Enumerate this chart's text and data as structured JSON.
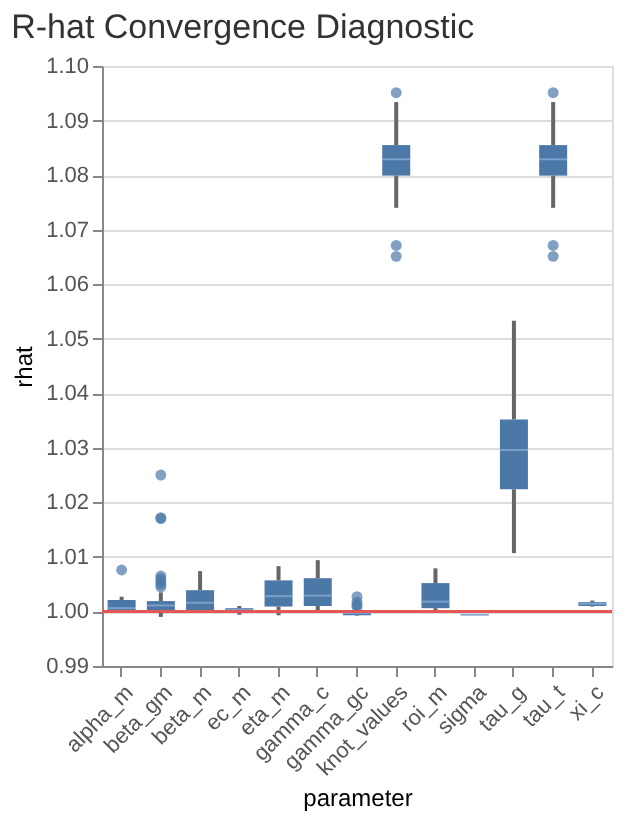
{
  "chart_data": {
    "type": "box",
    "title": "R-hat Convergence Diagnostic",
    "xlabel": "parameter",
    "ylabel": "rhat",
    "categories": [
      "alpha_m",
      "beta_gm",
      "beta_m",
      "ec_m",
      "eta_m",
      "gamma_c",
      "gamma_gc",
      "knot_values",
      "roi_m",
      "sigma",
      "tau_g",
      "tau_t",
      "xi_c"
    ],
    "series": [
      {
        "color": "#4c78a8",
        "boxes": [
          {
            "low": 1.0,
            "q1": 1.0002,
            "median": 1.0006,
            "q3": 1.0021,
            "high": 1.0027,
            "outliers": [
              1.0076
            ]
          },
          {
            "low": 0.999,
            "q1": 1.0001,
            "median": 1.0011,
            "q3": 1.0019,
            "high": 1.0035,
            "outliers": [
              1.0045,
              1.005,
              1.0055,
              1.006,
              1.0065,
              1.017,
              1.0172,
              1.025
            ]
          },
          {
            "low": 1.0,
            "q1": 1.0002,
            "median": 1.0016,
            "q3": 1.0039,
            "high": 1.0074
          },
          {
            "low": 0.9994,
            "q1": 1.0,
            "median": 1.0003,
            "q3": 1.0006,
            "high": 1.001
          },
          {
            "low": 0.9993,
            "q1": 1.0009,
            "median": 1.0028,
            "q3": 1.0057,
            "high": 1.0083
          },
          {
            "low": 0.9998,
            "q1": 1.001,
            "median": 1.0029,
            "q3": 1.0061,
            "high": 1.0094
          },
          {
            "low": 0.9992,
            "q1": 0.9993,
            "median": 0.9997,
            "q3": 1.0,
            "high": 1.0005,
            "outliers": [
              1.0008,
              1.0012,
              1.0017,
              1.0027
            ]
          },
          {
            "low": 1.074,
            "q1": 1.0799,
            "median": 1.0829,
            "q3": 1.0855,
            "high": 1.0934,
            "outliers": [
              1.0651,
              1.0671,
              1.0951
            ]
          },
          {
            "low": 1.0,
            "q1": 1.0006,
            "median": 1.0018,
            "q3": 1.0052,
            "high": 1.0079
          },
          {
            "low": 0.9993,
            "q1": 0.9993,
            "median": 0.9994,
            "q3": 0.9995,
            "high": 0.9995
          },
          {
            "low": 1.0107,
            "q1": 1.0224,
            "median": 1.0296,
            "q3": 1.0352,
            "high": 1.0533
          },
          {
            "low": 1.074,
            "q1": 1.0799,
            "median": 1.0829,
            "q3": 1.0855,
            "high": 1.0934,
            "outliers": [
              1.0651,
              1.0671,
              1.0951
            ]
          },
          {
            "low": 1.0009,
            "q1": 1.001,
            "median": 1.0014,
            "q3": 1.0017,
            "high": 1.002
          }
        ]
      }
    ],
    "ylim": [
      0.99,
      1.1
    ],
    "yticks": [
      0.99,
      {
        "value": 1.0,
        "label": "1.00"
      },
      1.01,
      1.02,
      1.03,
      1.04,
      1.05,
      1.06,
      1.07,
      1.08,
      1.09,
      {
        "value": 1.1,
        "label": "1.10"
      }
    ],
    "grid": "y",
    "ref_lines": [
      {
        "axis": "y",
        "value": 1.0,
        "color": "#e45756"
      }
    ]
  }
}
